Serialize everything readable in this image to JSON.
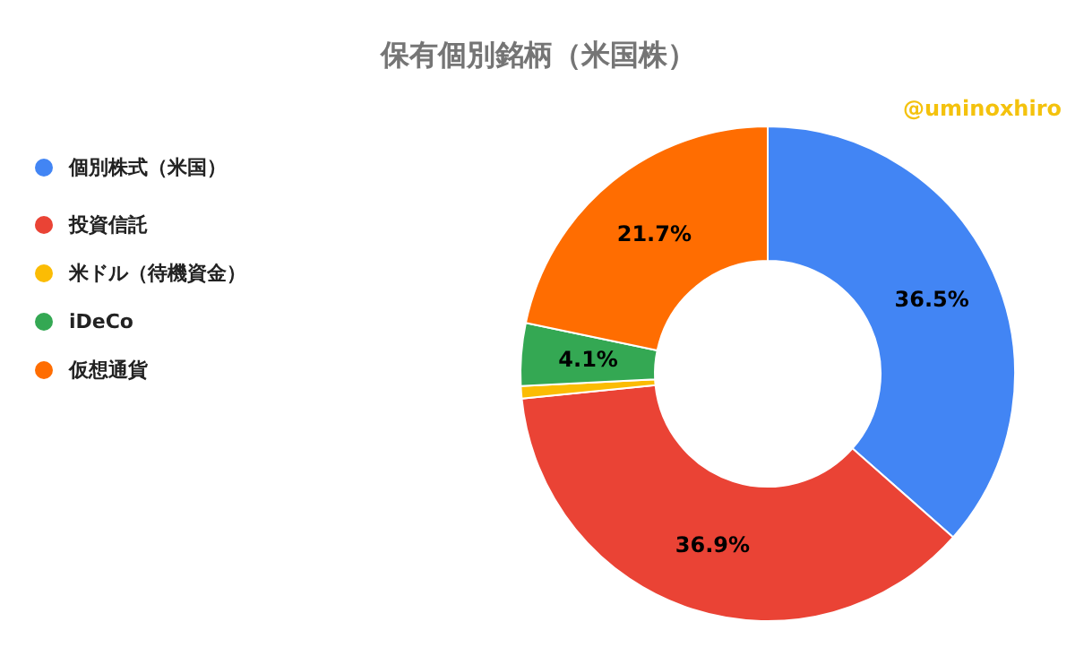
{
  "chart_data": {
    "type": "donut",
    "title": "保有個別銘柄（米国株）",
    "categories": [
      "個別株式（米国）",
      "投資信託",
      "米ドル（待機資金）",
      "iDeCo",
      "仮想通貨"
    ],
    "values": [
      36.5,
      36.9,
      0.8,
      4.1,
      21.7
    ],
    "colors": [
      "#4285f4",
      "#ea4335",
      "#fbbc04",
      "#34a853",
      "#ff6d01"
    ],
    "value_labels": [
      "36.5%",
      "36.9%",
      null,
      "4.1%",
      "21.7%"
    ],
    "legend": "left",
    "annotations": [
      "@uminoxhiro"
    ]
  }
}
